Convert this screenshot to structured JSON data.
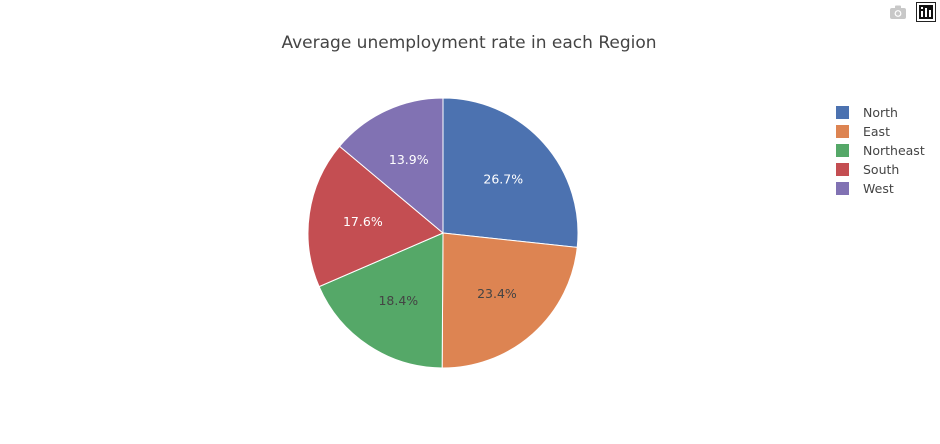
{
  "modebar": {
    "items": [
      {
        "icon": "camera-icon"
      },
      {
        "icon": "plotly-logo-icon"
      }
    ]
  },
  "chart_data": {
    "type": "pie",
    "title": "Average unemployment rate in each Region",
    "labels": [
      "North",
      "East",
      "Northeast",
      "South",
      "West"
    ],
    "values": [
      26.7,
      23.4,
      18.4,
      17.6,
      13.9
    ],
    "slice_labels": [
      "26.7%",
      "23.4%",
      "18.4%",
      "17.6%",
      "13.9%"
    ],
    "colors": [
      "#4c72b0",
      "#dd8452",
      "#55a868",
      "#c44e52",
      "#8172b3"
    ],
    "text_colors": [
      "#ffffff",
      "#444444",
      "#444444",
      "#ffffff",
      "#ffffff"
    ],
    "start_angle_deg": 0,
    "direction": "clockwise",
    "legend_placement": "top-right"
  }
}
